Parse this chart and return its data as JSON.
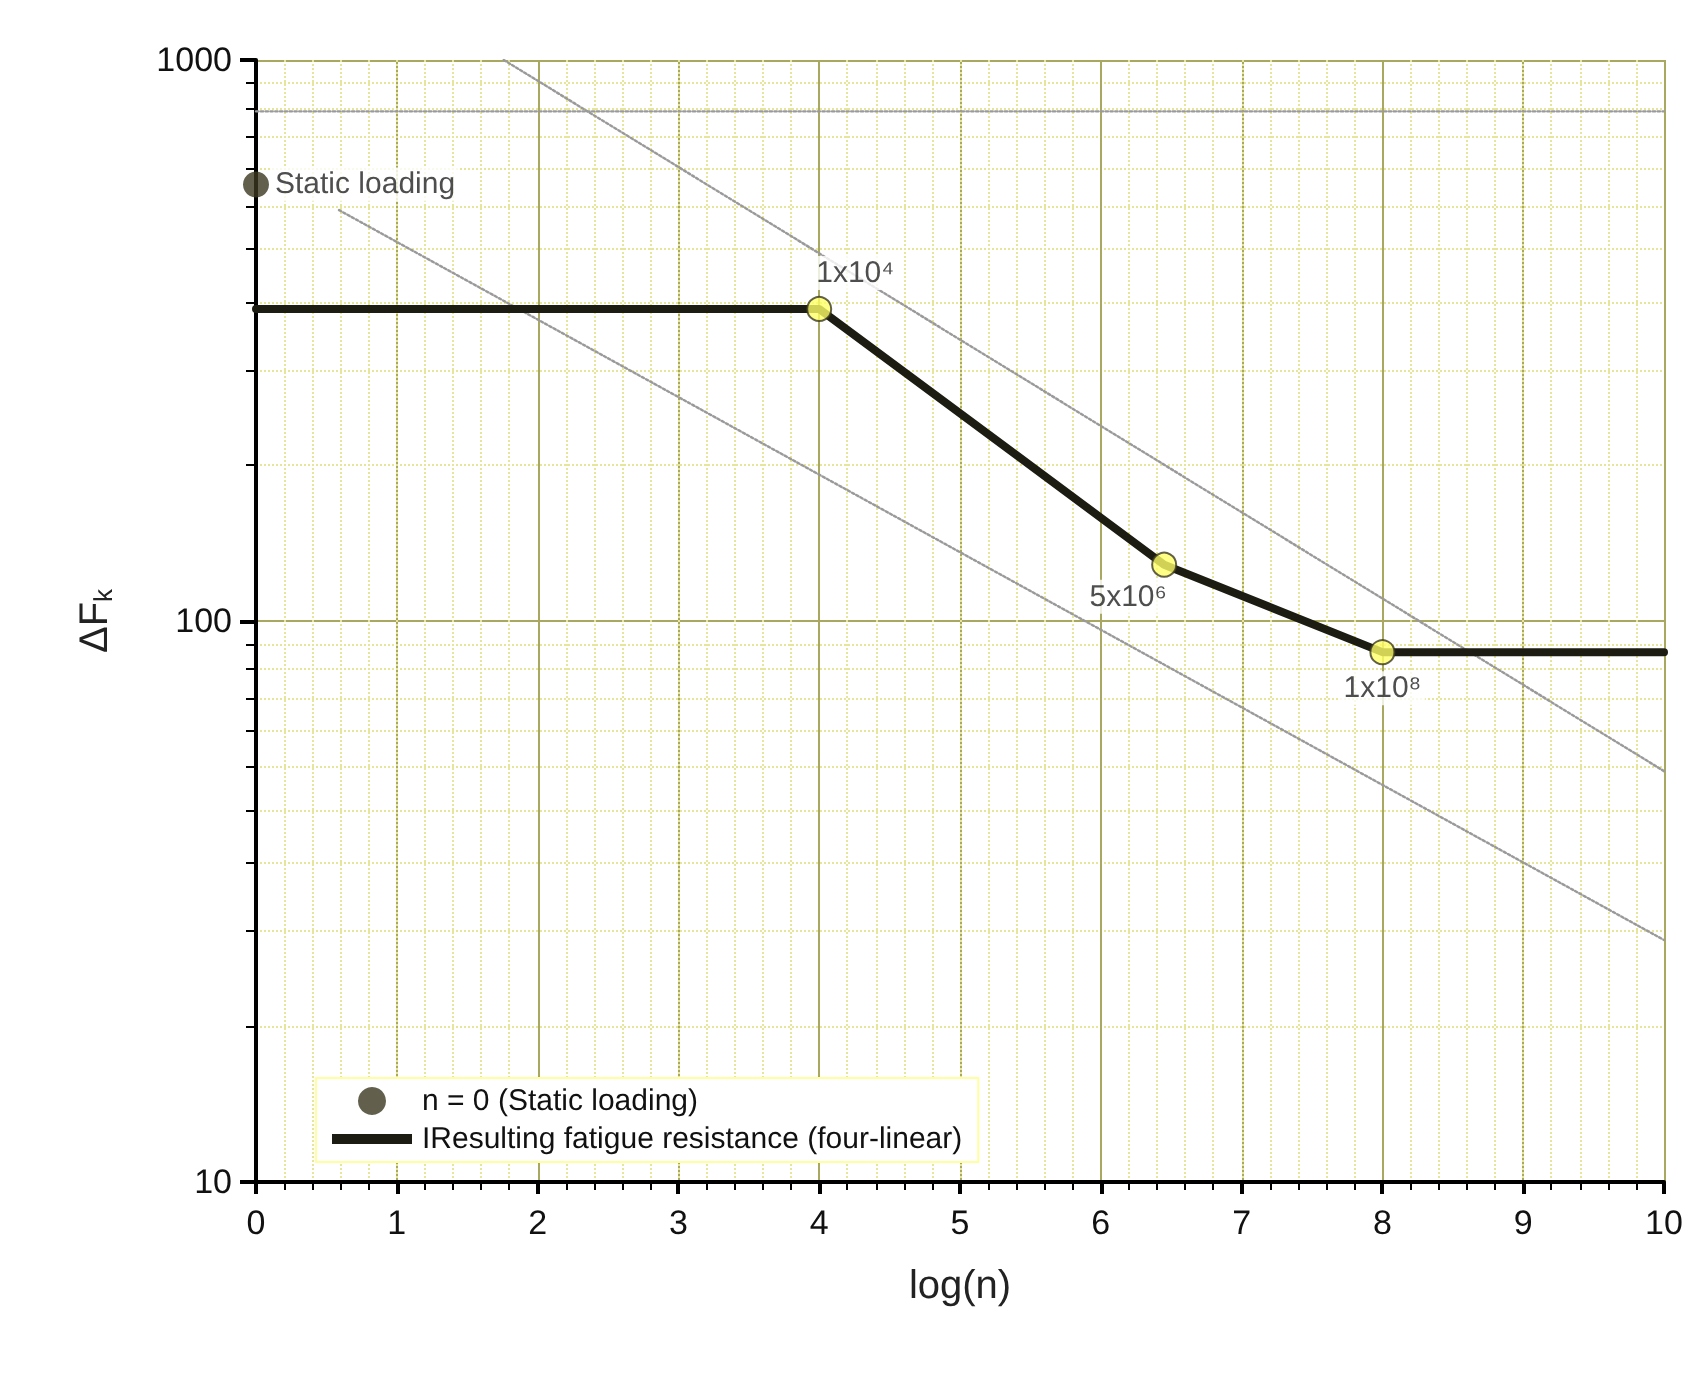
{
  "chart_data": {
    "type": "line",
    "xlabel": "log(n)",
    "ylabel": "ΔF$_{k}$",
    "xlim": [
      0,
      10
    ],
    "xticks": [
      0,
      1,
      2,
      3,
      4,
      5,
      6,
      7,
      8,
      9,
      10
    ],
    "ylim": [
      10,
      1000
    ],
    "yticks": [
      10,
      100,
      1000
    ],
    "log": "y",
    "grid": true,
    "legend": "bottom left",
    "series": [
      {
        "type": "line",
        "color": "#9a9a9a",
        "line_style": "dotted",
        "marker": "none",
        "x": [
          0,
          10
        ],
        "values": [
          810,
          810
        ]
      },
      {
        "type": "line",
        "color": "#9a9a9a",
        "line_style": "dotted",
        "marker": "none",
        "x": [
          1.76,
          10
        ],
        "values": [
          1000,
          54
        ]
      },
      {
        "type": "line",
        "color": "#9a9a9a",
        "line_style": "dotted",
        "marker": "none",
        "x": [
          0.59,
          10
        ],
        "values": [
          540,
          27
        ]
      },
      {
        "type": "scatter",
        "name": "n = 0 (Static loading)",
        "color": "#3b3820",
        "marker": "circle",
        "x": [
          0
        ],
        "values": [
          600
        ]
      },
      {
        "name": "IResulting fatigue resistance (four-linear)",
        "color": "#1c1c12",
        "line_style": "solid",
        "marker": "none",
        "x": [
          0,
          4,
          6.45,
          8,
          10
        ],
        "values": [
          360,
          360,
          126,
          88,
          88
        ]
      },
      {
        "type": "scatter",
        "color": "#ffff66",
        "marker": "circle",
        "x": [
          4,
          6.45,
          8
        ],
        "values": [
          360,
          126,
          88
        ]
      }
    ],
    "annotations": [
      {
        "text": "Static loading",
        "x": 0,
        "y": 600
      },
      {
        "text": "1x10⁴",
        "x": 4,
        "y": 360
      },
      {
        "text": "5x10⁶",
        "x": 6.45,
        "y": 126
      },
      {
        "text": "1x10⁸",
        "x": 8,
        "y": 88
      }
    ]
  }
}
